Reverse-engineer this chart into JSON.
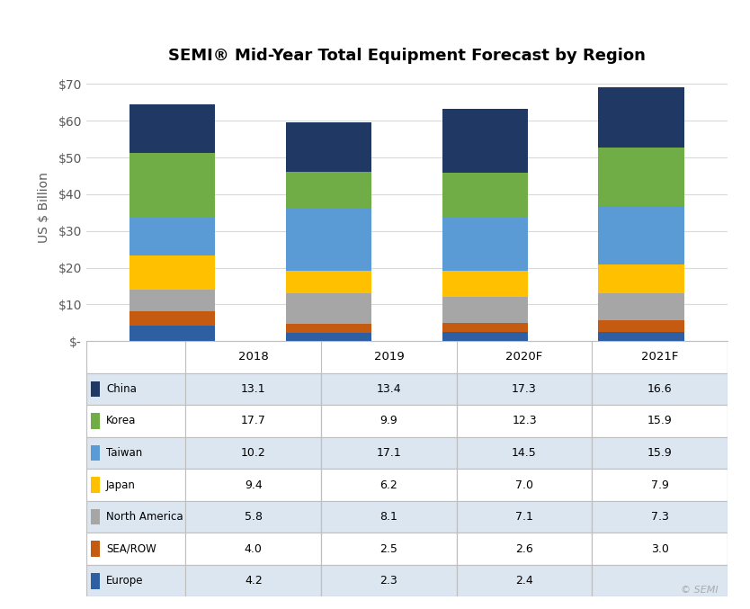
{
  "title": "SEMI® Mid-Year Total Equipment Forecast by Region",
  "ylabel": "US $ Billion",
  "years": [
    "2018",
    "2019",
    "2020F",
    "2021F"
  ],
  "regions_stack": [
    "Europe",
    "SEA/ROW",
    "North America",
    "Japan",
    "Taiwan",
    "Korea",
    "China"
  ],
  "table_regions": [
    "China",
    "Korea",
    "Taiwan",
    "Japan",
    "North America",
    "SEA/ROW",
    "Europe"
  ],
  "data": {
    "Europe": [
      4.2,
      2.3,
      2.4,
      2.6
    ],
    "SEA/ROW": [
      4.0,
      2.5,
      2.6,
      3.0
    ],
    "North America": [
      5.8,
      8.1,
      7.1,
      7.3
    ],
    "Japan": [
      9.4,
      6.2,
      7.0,
      7.9
    ],
    "Taiwan": [
      10.2,
      17.1,
      14.5,
      15.9
    ],
    "Korea": [
      17.7,
      9.9,
      12.3,
      15.9
    ],
    "China": [
      13.1,
      13.4,
      17.3,
      16.6
    ]
  },
  "table_data": {
    "China": [
      "13.1",
      "13.4",
      "17.3",
      "16.6"
    ],
    "Korea": [
      "17.7",
      "9.9",
      "12.3",
      "15.9"
    ],
    "Taiwan": [
      "10.2",
      "17.1",
      "14.5",
      "15.9"
    ],
    "Japan": [
      "9.4",
      "6.2",
      "7.0",
      "7.9"
    ],
    "North America": [
      "5.8",
      "8.1",
      "7.1",
      "7.3"
    ],
    "SEA/ROW": [
      "4.0",
      "2.5",
      "2.6",
      "3.0"
    ],
    "Europe": [
      "4.2",
      "2.3",
      "2.4",
      ""
    ]
  },
  "bar_colors": {
    "Europe": "#2e5fa3",
    "SEA/ROW": "#c55a11",
    "North America": "#a6a6a6",
    "Japan": "#ffc000",
    "Taiwan": "#5b9bd5",
    "Korea": "#70ad47",
    "China": "#1f3864"
  },
  "yticks": [
    0,
    10,
    20,
    30,
    40,
    50,
    60,
    70
  ],
  "ytick_labels": [
    "$-",
    "$10",
    "$20",
    "$30",
    "$40",
    "$50",
    "$60",
    "$70"
  ],
  "bar_width": 0.55,
  "x_positions": [
    0,
    1,
    2,
    3
  ],
  "xlim": [
    -0.55,
    3.55
  ],
  "ylim": [
    0,
    73
  ],
  "background_color": "#ffffff",
  "grid_color": "#d9d9d9",
  "table_line_color": "#bfbfbf",
  "row_colors": [
    "#dce6f1",
    "#ffffff"
  ],
  "header_row_color": "#ffffff",
  "font_size_title": 13,
  "font_size_axis": 10,
  "font_size_table": 9
}
